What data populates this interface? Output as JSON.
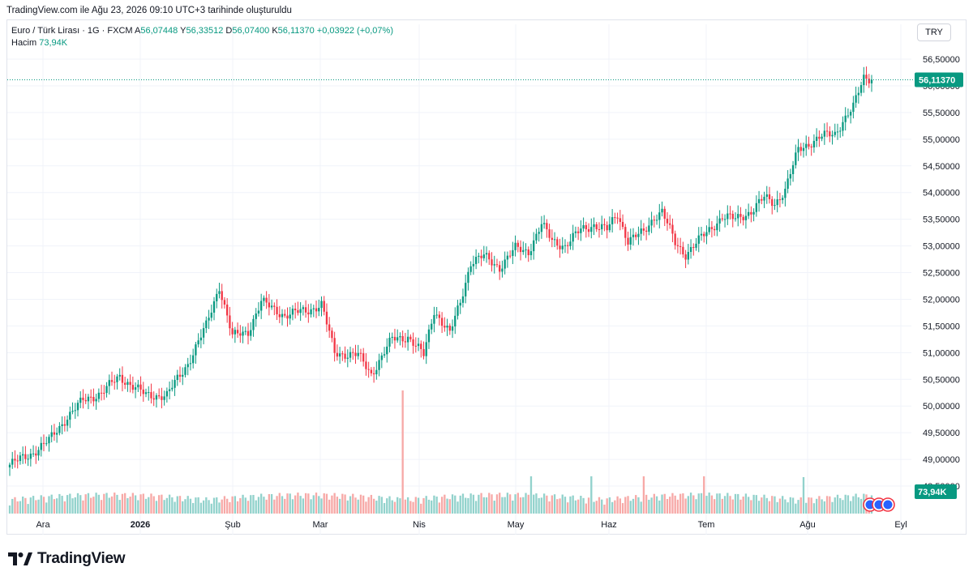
{
  "caption": "TradingView.com ile Ağu 23, 2026 09:10 UTC+3 tarihinde oluşturuldu",
  "legend": {
    "symbol": "Euro / Türk Lirası · 1G · FXCM",
    "open_label": "A",
    "open_value": "56,07448",
    "high_label": "Y",
    "high_value": "56,33512",
    "low_label": "D",
    "low_value": "56,07400",
    "close_label": "K",
    "close_value": "56,11370",
    "change": "+0,03922 (+0,07%)",
    "volume_label": "Hacim",
    "volume_value": "73,94K"
  },
  "currency_button": "TRY",
  "brand": "TradingView",
  "colors": {
    "up": "#089981",
    "down": "#f23645",
    "vol_up": "#92d2cc",
    "vol_down": "#f7a9a7",
    "grid": "#f0f3fa"
  },
  "chart_data": {
    "type": "candlestick",
    "y_axis_labels": [
      "56,50000",
      "56,00000",
      "55,50000",
      "55,00000",
      "54,50000",
      "54,00000",
      "53,50000",
      "53,00000",
      "52,50000",
      "52,00000",
      "51,50000",
      "51,00000",
      "50,50000",
      "50,00000",
      "49,50000",
      "49,00000",
      "48,50000"
    ],
    "ylim": [
      48.5,
      56.6
    ],
    "x_axis_labels": [
      "Ara",
      "2026",
      "Şub",
      "Mar",
      "Nis",
      "May",
      "Haz",
      "Tem",
      "Ağu",
      "Eyl"
    ],
    "x_axis_bold": [
      "2026"
    ],
    "last_price_label": "56,11370",
    "last_volume_label": "73,94K",
    "series": [
      {
        "name": "price_waypoints",
        "points": [
          [
            0,
            48.9
          ],
          [
            8,
            49.1
          ],
          [
            15,
            49.35
          ],
          [
            22,
            49.8
          ],
          [
            28,
            50.1
          ],
          [
            35,
            50.25
          ],
          [
            42,
            50.55
          ],
          [
            52,
            50.2
          ],
          [
            60,
            50.2
          ],
          [
            68,
            50.8
          ],
          [
            75,
            51.5
          ],
          [
            80,
            52.25
          ],
          [
            85,
            51.3
          ],
          [
            91,
            51.4
          ],
          [
            96,
            51.95
          ],
          [
            105,
            51.7
          ],
          [
            114,
            51.8
          ],
          [
            119,
            51.9
          ],
          [
            124,
            51.0
          ],
          [
            133,
            50.95
          ],
          [
            138,
            50.6
          ],
          [
            146,
            51.25
          ],
          [
            152,
            51.3
          ],
          [
            158,
            50.95
          ],
          [
            162,
            51.8
          ],
          [
            168,
            51.35
          ],
          [
            172,
            51.95
          ],
          [
            176,
            52.7
          ],
          [
            181,
            52.8
          ],
          [
            187,
            52.6
          ],
          [
            193,
            52.95
          ],
          [
            198,
            52.9
          ],
          [
            203,
            53.4
          ],
          [
            207,
            53.1
          ],
          [
            212,
            53.0
          ],
          [
            218,
            53.3
          ],
          [
            223,
            53.4
          ],
          [
            228,
            53.3
          ],
          [
            232,
            53.6
          ],
          [
            236,
            53.1
          ],
          [
            242,
            53.25
          ],
          [
            246,
            53.55
          ],
          [
            249,
            53.65
          ],
          [
            254,
            53.05
          ],
          [
            258,
            52.85
          ],
          [
            262,
            53.05
          ],
          [
            267,
            53.3
          ],
          [
            272,
            53.55
          ],
          [
            277,
            53.5
          ],
          [
            283,
            53.65
          ],
          [
            288,
            53.9
          ],
          [
            292,
            53.8
          ],
          [
            296,
            54.05
          ],
          [
            301,
            54.8
          ],
          [
            306,
            54.95
          ],
          [
            310,
            55.05
          ],
          [
            315,
            55.1
          ],
          [
            318,
            55.35
          ],
          [
            322,
            55.6
          ],
          [
            326,
            56.15
          ]
        ]
      }
    ]
  }
}
